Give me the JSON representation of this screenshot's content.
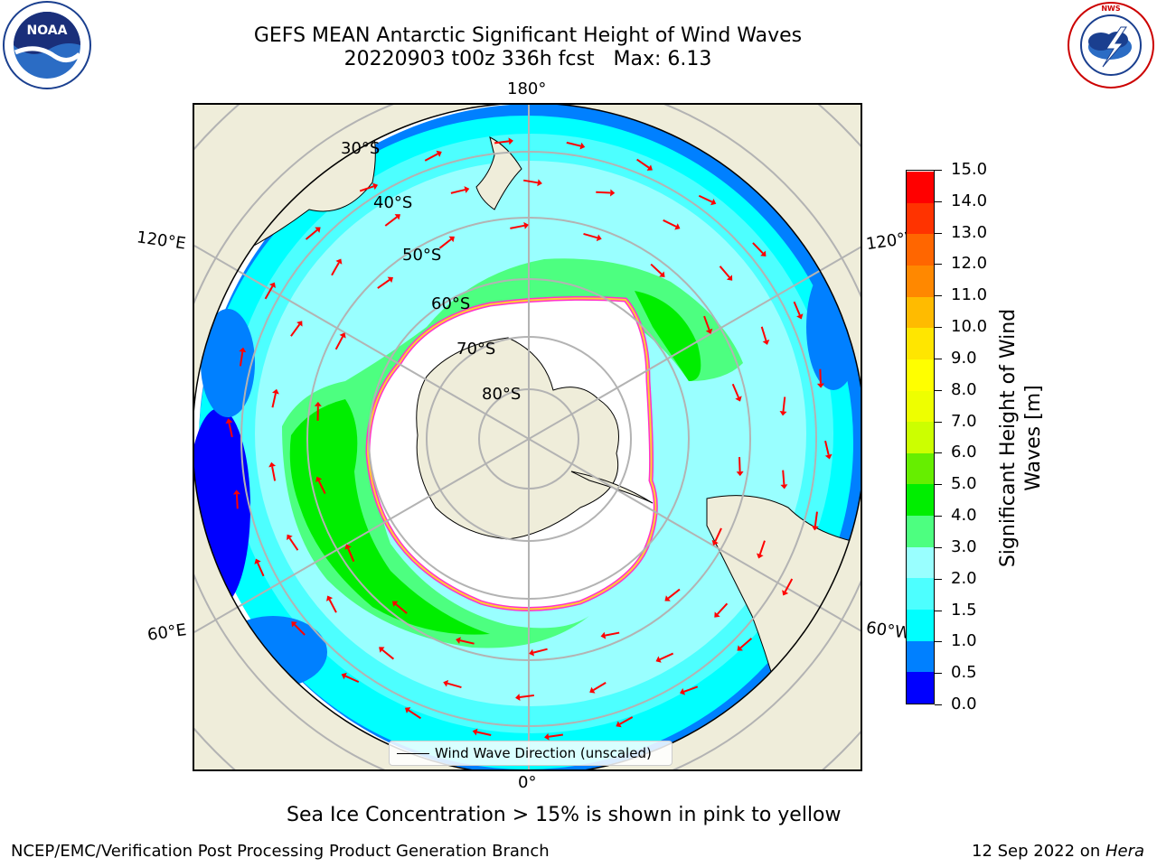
{
  "header": {
    "title": "GEFS MEAN Antarctic Significant Height of Wind Waves",
    "subtitle": "20220903 t00z 336h fcst   Max: 6.13"
  },
  "logos": {
    "noaa_text": "NOAA",
    "noaa_ring": "NATIONAL OCEANIC AND ATMOSPHERIC ADMINISTRATION · U.S. DEPARTMENT OF COMMERCE",
    "nws_ring": "NATIONAL WEATHER SERVICE"
  },
  "map": {
    "projection": "south-polar-stereographic",
    "lon_labels": {
      "top": "180°",
      "bottom": "0°",
      "left_upper": "120°E",
      "left_lower": "60°E",
      "right_upper": "120°W",
      "right_lower": "60°W"
    },
    "lat_labels": [
      "30°S",
      "40°S",
      "50°S",
      "60°S",
      "70°S",
      "80°S"
    ],
    "colors": {
      "land": "#efedda",
      "coast": "#000000",
      "grid": "#b3b3b3",
      "arrow": "#ff0000",
      "ice_pink": "#ff33cc",
      "ice_yellow": "#ffcc33"
    }
  },
  "legend": {
    "label": "Wind Wave Direction (unscaled)"
  },
  "colorbar": {
    "title_line1": "Significant Height of Wind",
    "title_line2": "Waves [m]",
    "tick_labels": [
      "0.0",
      "0.5",
      "1.0",
      "1.5",
      "2.0",
      "3.0",
      "4.0",
      "5.0",
      "6.0",
      "7.0",
      "8.0",
      "9.0",
      "10.0",
      "11.0",
      "12.0",
      "13.0",
      "14.0",
      "15.0"
    ],
    "colors": [
      "#0000ff",
      "#0080ff",
      "#00ffff",
      "#4dffff",
      "#99ffff",
      "#4dff80",
      "#00ee00",
      "#66ee00",
      "#ccff00",
      "#eeff00",
      "#ffff00",
      "#ffe600",
      "#ffbb00",
      "#ff8800",
      "#ff6600",
      "#ff3300",
      "#ff0000"
    ]
  },
  "caption": "Sea Ice Concentration > 15% is shown in pink to yellow",
  "footer": {
    "left": "NCEP/EMC/Verification Post Processing Product Generation Branch",
    "right_date": "12 Sep 2022 on ",
    "right_machine": "Hera"
  }
}
